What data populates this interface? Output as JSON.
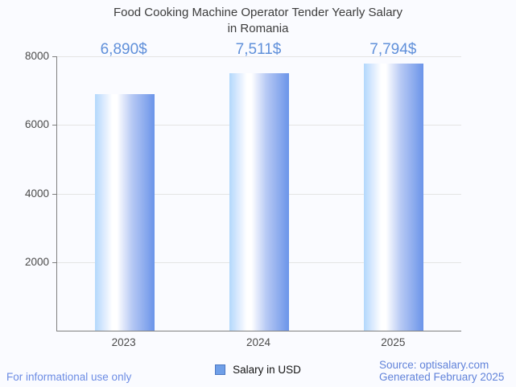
{
  "title": {
    "line1": "Food Cooking Machine Operator Tender Yearly Salary",
    "line2": "in Romania"
  },
  "chart_data": {
    "type": "bar",
    "title": "Food Cooking Machine Operator Tender Yearly Salary in Romania",
    "categories": [
      "2023",
      "2024",
      "2025"
    ],
    "series": [
      {
        "name": "Salary in USD",
        "values": [
          6890,
          7511,
          7794
        ]
      }
    ],
    "value_labels": [
      "6,890$",
      "7,511$",
      "7,794$"
    ],
    "xlabel": "",
    "ylabel": "",
    "ylim": [
      0,
      8000
    ],
    "yticks": [
      2000,
      4000,
      6000,
      8000
    ],
    "grid": true,
    "legend_position": "bottom"
  },
  "legend": {
    "label": "Salary in USD"
  },
  "footer": {
    "left": "For informational use only",
    "source": "Source: optisalary.com",
    "generated": "Generated February 2025"
  },
  "colors": {
    "background": "#fafbff",
    "title": "#3c3c3c",
    "axis": "#7f7f7f",
    "grid": "#e4e4e4",
    "tick_label": "#4a4a4a",
    "annotation": "#6090da",
    "footer_left": "#6c8ce4",
    "footer_right": "#6183da",
    "legend_swatch_fill": "#6f9fe8",
    "legend_swatch_border": "#4b77c2",
    "bar_gradient": [
      "#b2d8fc",
      "#d9e9fe",
      "#ffffff",
      "#b7c9f4",
      "#6b94e9"
    ]
  }
}
